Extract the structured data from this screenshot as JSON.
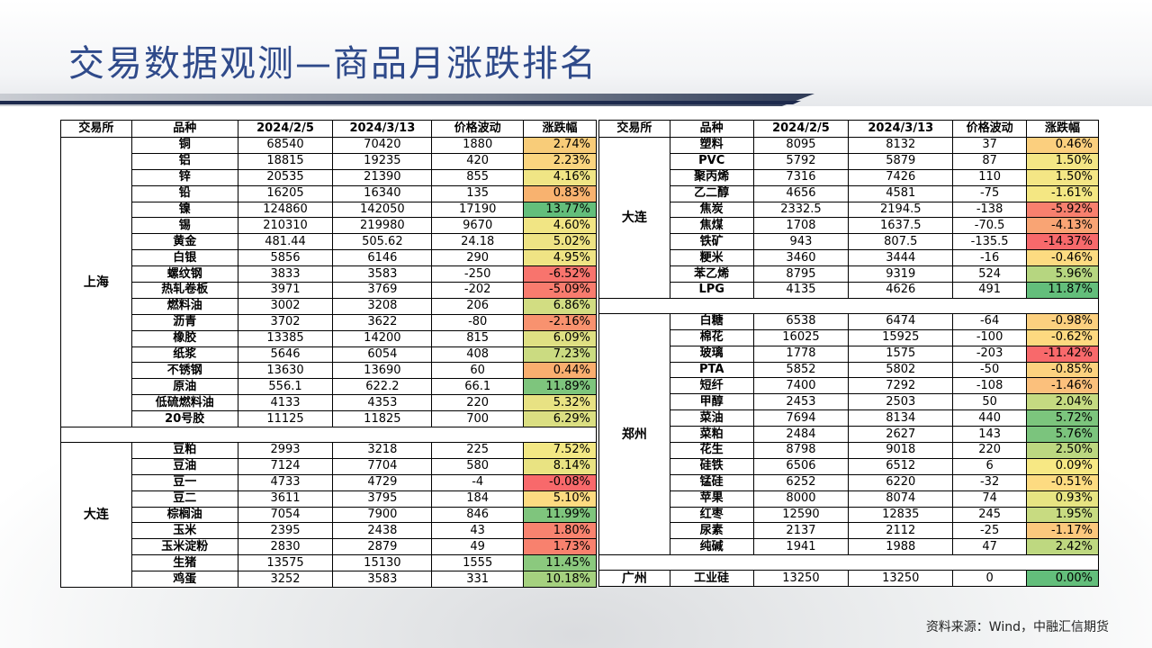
{
  "title": "交易数据观测—商品月涨跌排名",
  "source": "资料来源：Wind，中融汇信期货",
  "headers": [
    "交易所",
    "品种",
    "2024/2/5",
    "2024/3/13",
    "价格波动",
    "涨跌幅"
  ],
  "left_groups": [
    {
      "exchange": "上海",
      "rows": [
        [
          "铜",
          "68540",
          "70420",
          "1880",
          "2.74%",
          "#f8cc79"
        ],
        [
          "铝",
          "18815",
          "19235",
          "420",
          "2.23%",
          "#fbd57f"
        ],
        [
          "锌",
          "20535",
          "21390",
          "855",
          "4.16%",
          "#f0e585"
        ],
        [
          "铅",
          "16205",
          "16340",
          "135",
          "0.83%",
          "#f8b26f"
        ],
        [
          "镍",
          "124860",
          "142050",
          "17190",
          "13.77%",
          "#63be7b"
        ],
        [
          "锡",
          "210310",
          "219980",
          "9670",
          "4.60%",
          "#f1e584"
        ],
        [
          "黄金",
          "481.44",
          "505.62",
          "24.18",
          "5.02%",
          "#eee384"
        ],
        [
          "白银",
          "5856",
          "6146",
          "290",
          "4.95%",
          "#efe484"
        ],
        [
          "螺纹钢",
          "3833",
          "3583",
          "-250",
          "-6.52%",
          "#f8746d"
        ],
        [
          "热轧卷板",
          "3971",
          "3769",
          "-202",
          "-5.09%",
          "#f87c6e"
        ],
        [
          "燃料油",
          "3002",
          "3208",
          "206",
          "6.86%",
          "#d2dd82"
        ],
        [
          "沥青",
          "3702",
          "3622",
          "-80",
          "-2.16%",
          "#f8926f"
        ],
        [
          "橡胶",
          "13385",
          "14200",
          "815",
          "6.09%",
          "#dfe083"
        ],
        [
          "纸浆",
          "5646",
          "6054",
          "408",
          "7.23%",
          "#cbdb81"
        ],
        [
          "不锈钢",
          "13630",
          "13690",
          "60",
          "0.44%",
          "#f9ae6f"
        ],
        [
          "原油",
          "556.1",
          "622.2",
          "66.1",
          "11.89%",
          "#7ec57d"
        ],
        [
          "低硫燃料油",
          "4133",
          "4353",
          "220",
          "5.32%",
          "#e8e283"
        ],
        [
          "20号胶",
          "11125",
          "11825",
          "700",
          "6.29%",
          "#dbdf82"
        ]
      ]
    },
    {
      "exchange": "大连",
      "rows": [
        [
          "豆粕",
          "2993",
          "3218",
          "225",
          "7.52%",
          "#f3e884"
        ],
        [
          "豆油",
          "7124",
          "7704",
          "580",
          "8.14%",
          "#e9e382"
        ],
        [
          "豆一",
          "4733",
          "4729",
          "-4",
          "-0.08%",
          "#f8696b"
        ],
        [
          "豆二",
          "3611",
          "3795",
          "184",
          "5.10%",
          "#fddb81"
        ],
        [
          "棕榈油",
          "7054",
          "7900",
          "846",
          "11.99%",
          "#7fc57d"
        ],
        [
          "玉米",
          "2395",
          "2438",
          "43",
          "1.80%",
          "#f8836f"
        ],
        [
          "玉米淀粉",
          "2830",
          "2879",
          "49",
          "1.73%",
          "#f8816e"
        ],
        [
          "生猪",
          "13575",
          "15130",
          "1555",
          "11.45%",
          "#8bc97e"
        ],
        [
          "鸡蛋",
          "3252",
          "3583",
          "331",
          "10.18%",
          "#a5d17f"
        ]
      ]
    }
  ],
  "right_groups": [
    {
      "exchange": "大连",
      "rows": [
        [
          "塑料",
          "8095",
          "8132",
          "37",
          "0.46%",
          "#fbcf7e"
        ],
        [
          "PVC",
          "5792",
          "5879",
          "87",
          "1.50%",
          "#f4e685"
        ],
        [
          "聚丙烯",
          "7316",
          "7426",
          "110",
          "1.50%",
          "#f4e685"
        ],
        [
          "乙二醇",
          "4656",
          "4581",
          "-75",
          "-1.61%",
          "#f4e783"
        ],
        [
          "焦炭",
          "2332.5",
          "2194.5",
          "-138",
          "-5.92%",
          "#f8806e"
        ],
        [
          "焦煤",
          "1708",
          "1637.5",
          "-70.5",
          "-4.13%",
          "#f9a474"
        ],
        [
          "铁矿",
          "943",
          "807.5",
          "-135.5",
          "-14.37%",
          "#f8696b"
        ],
        [
          "粳米",
          "3460",
          "3444",
          "-16",
          "-0.46%",
          "#fddb81"
        ],
        [
          "苯乙烯",
          "8795",
          "9319",
          "524",
          "5.96%",
          "#b6d680"
        ],
        [
          "LPG",
          "4135",
          "4626",
          "491",
          "11.87%",
          "#63be7b"
        ]
      ]
    },
    {
      "exchange": "郑州",
      "rows": [
        [
          "白糖",
          "6538",
          "6474",
          "-64",
          "-0.98%",
          "#fcd07f"
        ],
        [
          "棉花",
          "16025",
          "15925",
          "-100",
          "-0.62%",
          "#fdd980"
        ],
        [
          "玻璃",
          "1778",
          "1575",
          "-203",
          "-11.42%",
          "#f8696b"
        ],
        [
          "PTA",
          "5852",
          "5802",
          "-50",
          "-0.85%",
          "#fcd27f"
        ],
        [
          "短纤",
          "7400",
          "7292",
          "-108",
          "-1.46%",
          "#fbc07c"
        ],
        [
          "甲醇",
          "2453",
          "2503",
          "50",
          "2.04%",
          "#c5da81"
        ],
        [
          "菜油",
          "7694",
          "8134",
          "440",
          "5.72%",
          "#7cc57d"
        ],
        [
          "菜粕",
          "2484",
          "2627",
          "143",
          "5.76%",
          "#7bc47d"
        ],
        [
          "花生",
          "8798",
          "9018",
          "220",
          "2.50%",
          "#bcd780"
        ],
        [
          "硅铁",
          "6506",
          "6512",
          "6",
          "0.09%",
          "#f7e884"
        ],
        [
          "锰硅",
          "6252",
          "6220",
          "-32",
          "-0.51%",
          "#fddb81"
        ],
        [
          "苹果",
          "8000",
          "8074",
          "74",
          "0.93%",
          "#e7e482"
        ],
        [
          "红枣",
          "12590",
          "12835",
          "245",
          "1.95%",
          "#c8db81"
        ],
        [
          "尿素",
          "2137",
          "2112",
          "-25",
          "-1.17%",
          "#fcc87d"
        ],
        [
          "纯碱",
          "1941",
          "1988",
          "47",
          "2.42%",
          "#bed880"
        ]
      ]
    },
    {
      "exchange": "广州",
      "rows": [
        [
          "工业硅",
          "13250",
          "13250",
          "0",
          "0.00%",
          "#63be7b"
        ]
      ]
    }
  ]
}
